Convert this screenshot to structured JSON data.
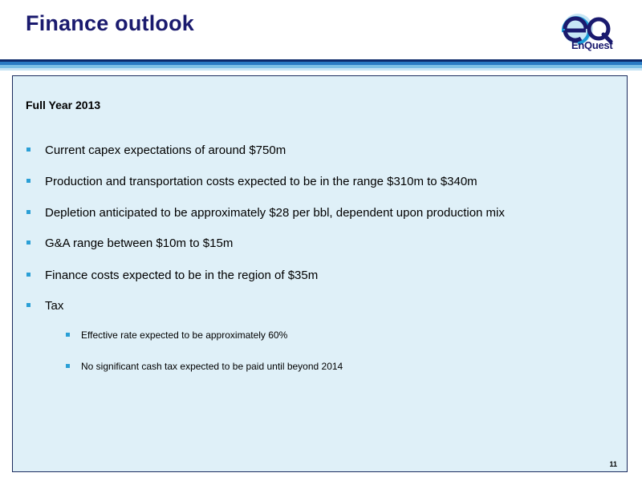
{
  "slide": {
    "title": "Finance outlook",
    "logo_text": "EnQuest",
    "logo_monogram": "eQ",
    "brand_colors": {
      "navy": "#1a1a6e",
      "blue": "#2a7bc4",
      "light_blue": "#7ec1e6",
      "panel": "#dff0f8"
    }
  },
  "panel": {
    "heading": "Full Year 2013",
    "bullets": [
      {
        "text": "Current capex expectations of around $750m"
      },
      {
        "text": "Production and transportation costs expected to be in the range $310m to $340m"
      },
      {
        "text": "Depletion anticipated to be approximately $28 per bbl, dependent upon production mix"
      },
      {
        "text": "G&A range between $10m to $15m"
      },
      {
        "text": "Finance costs expected to be in the region of $35m"
      },
      {
        "text": "Tax"
      }
    ],
    "sub_bullets": [
      {
        "text": "Effective rate expected to be approximately 60%"
      },
      {
        "text": "No significant cash tax expected to be paid until beyond 2014"
      }
    ]
  },
  "page_number": "11"
}
